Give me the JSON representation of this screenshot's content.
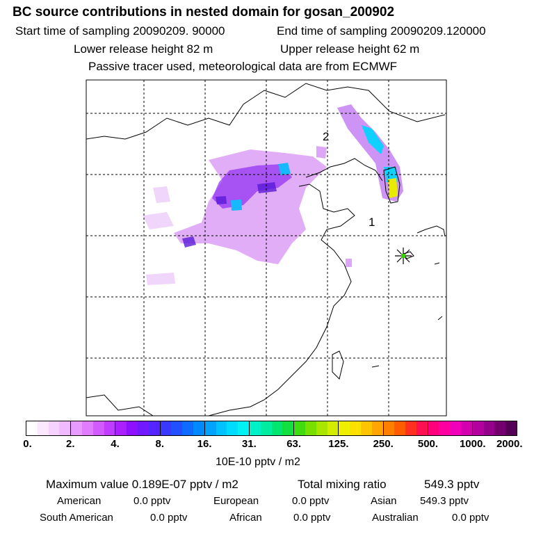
{
  "header": {
    "title": "BC  source contributions in nested domain for gosan_200902",
    "start_time": "Start time of sampling 20090209. 90000",
    "end_time": "End time of sampling 20090209.120000",
    "lower_height": "Lower release height   82 m",
    "upper_height": "Upper release height   62 m",
    "note": "Passive tracer used, meteorological data are from ECMWF"
  },
  "map": {
    "markers": [
      "2",
      "1"
    ]
  },
  "colorbar": {
    "colors": [
      "#ffffff",
      "#fbe8ff",
      "#f5d2ff",
      "#efbaff",
      "#e79bff",
      "#df7cff",
      "#d25bff",
      "#c03cff",
      "#aa20ff",
      "#8d10ff",
      "#7118ff",
      "#5525ff",
      "#3a37ff",
      "#2350ff",
      "#0f6bff",
      "#0088ff",
      "#00a4ff",
      "#00c2ff",
      "#00dcff",
      "#00f2f2",
      "#00f0c8",
      "#00ec9e",
      "#00e670",
      "#10e040",
      "#40dc10",
      "#78e000",
      "#a8e600",
      "#d4ec00",
      "#eef000",
      "#fce000",
      "#ffc400",
      "#ffa400",
      "#ff8000",
      "#ff5c00",
      "#ff3020",
      "#ff1050",
      "#ff007a",
      "#ff00a0",
      "#f000b8",
      "#d400b0",
      "#b4009e",
      "#94008a",
      "#740070",
      "#540056"
    ],
    "tick_labels": [
      "0.",
      "2.",
      "4.",
      "8.",
      "16.",
      "31.",
      "63.",
      "125.",
      "250.",
      "500.",
      "1000.",
      "2000."
    ],
    "units": "10E-10 pptv / m2"
  },
  "stats": {
    "max_value": "Maximum value  0.189E-07 pptv / m2",
    "total": "Total mixing ratio",
    "total_value": "549.3 pptv",
    "regions": [
      {
        "name": "American",
        "value": "0.0 pptv"
      },
      {
        "name": "European",
        "value": "0.0 pptv"
      },
      {
        "name": "Asian",
        "value": "549.3 pptv"
      },
      {
        "name": "South American",
        "value": "0.0 pptv"
      },
      {
        "name": "African",
        "value": "0.0 pptv"
      },
      {
        "name": "Australian",
        "value": "0.0 pptv"
      }
    ]
  }
}
